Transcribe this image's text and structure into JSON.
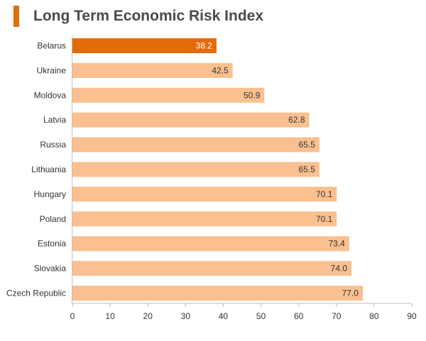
{
  "header": {
    "title": "Long Term Economic Risk Index"
  },
  "colors": {
    "accent": "#e36c0a",
    "highlight_bar": "#e36c0a",
    "bar": "#fac08f",
    "axis": "#bfbfbf"
  },
  "chart_data": {
    "type": "bar",
    "orientation": "horizontal",
    "title": "Long Term Economic Risk Index",
    "xlabel": "",
    "ylabel": "",
    "xlim": [
      0,
      90
    ],
    "x_ticks": [
      0,
      10,
      20,
      30,
      40,
      50,
      60,
      70,
      80,
      90
    ],
    "grid": false,
    "categories": [
      "Belarus",
      "Ukraine",
      "Moldova",
      "Latvia",
      "Russia",
      "Lithuania",
      "Hungary",
      "Poland",
      "Estonia",
      "Slovakia",
      "Czech Republic"
    ],
    "values": [
      38.2,
      42.5,
      50.9,
      62.8,
      65.5,
      65.5,
      70.1,
      70.1,
      73.4,
      74.0,
      77.0
    ],
    "value_labels": [
      "38.2",
      "42.5",
      "50.9",
      "62.8",
      "65.5",
      "65.5",
      "70.1",
      "70.1",
      "73.4",
      "74.0",
      "77.0"
    ],
    "highlighted_category": "Belarus"
  }
}
